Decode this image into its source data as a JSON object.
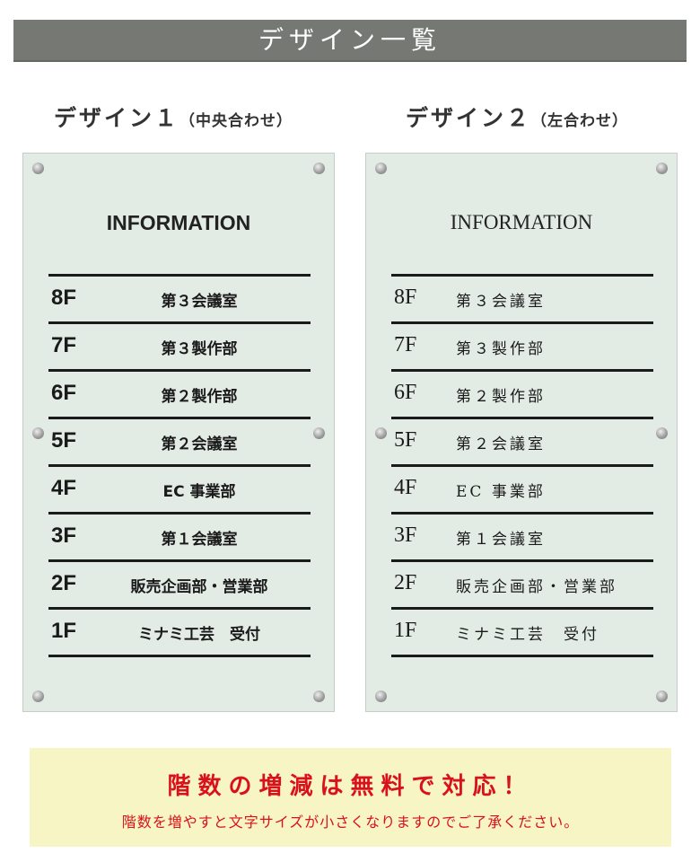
{
  "header": {
    "title": "デザイン一覧"
  },
  "designs": [
    {
      "title": "デザイン１",
      "note": "（中央合わせ）",
      "heading": "INFORMATION"
    },
    {
      "title": "デザイン２",
      "note": "（左合わせ）",
      "heading": "INFORMATION"
    }
  ],
  "floors": [
    {
      "floor": "8F",
      "name": "第３会議室"
    },
    {
      "floor": "7F",
      "name": "第３製作部"
    },
    {
      "floor": "6F",
      "name": "第２製作部"
    },
    {
      "floor": "5F",
      "name": "第２会議室"
    },
    {
      "floor": "4F",
      "name": "EC 事業部"
    },
    {
      "floor": "3F",
      "name": "第１会議室"
    },
    {
      "floor": "2F",
      "name": "販売企画部・営業部"
    },
    {
      "floor": "1F",
      "name": "ミナミ工芸　受付"
    }
  ],
  "notice": {
    "headline": "階数の増減は無料で対応！",
    "detail": "階数を増やすと文字サイズが小さくなりますのでご了承ください。"
  },
  "colors": {
    "header_bg": "#757873",
    "panel_bg": "#e3ebe5",
    "notice_bg": "#f7f5c3",
    "notice_text": "#d9111c"
  }
}
